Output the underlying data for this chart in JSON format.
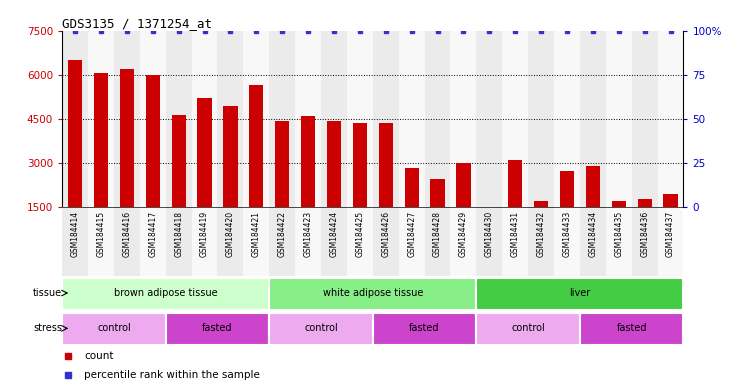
{
  "title": "GDS3135 / 1371254_at",
  "samples": [
    "GSM184414",
    "GSM184415",
    "GSM184416",
    "GSM184417",
    "GSM184418",
    "GSM184419",
    "GSM184420",
    "GSM184421",
    "GSM184422",
    "GSM184423",
    "GSM184424",
    "GSM184425",
    "GSM184426",
    "GSM184427",
    "GSM184428",
    "GSM184429",
    "GSM184430",
    "GSM184431",
    "GSM184432",
    "GSM184433",
    "GSM184434",
    "GSM184435",
    "GSM184436",
    "GSM184437"
  ],
  "counts": [
    6500,
    6050,
    6200,
    6000,
    4650,
    5200,
    4950,
    5650,
    4450,
    4600,
    4450,
    4350,
    4350,
    2850,
    2450,
    3000,
    1500,
    3100,
    1700,
    2750,
    2900,
    1700,
    1800,
    1950
  ],
  "percentile_ranks": [
    100,
    100,
    100,
    100,
    100,
    100,
    100,
    100,
    100,
    100,
    100,
    100,
    100,
    100,
    100,
    100,
    100,
    100,
    100,
    100,
    100,
    100,
    100,
    100
  ],
  "bar_color": "#cc0000",
  "dot_color": "#3333cc",
  "ylim_left": [
    1500,
    7500
  ],
  "yticks_left": [
    1500,
    3000,
    4500,
    6000,
    7500
  ],
  "ylim_right": [
    0,
    100
  ],
  "yticks_right": [
    0,
    25,
    50,
    75,
    100
  ],
  "tissue_groups": [
    {
      "label": "brown adipose tissue",
      "start": 0,
      "end": 8,
      "color": "#ccffcc"
    },
    {
      "label": "white adipose tissue",
      "start": 8,
      "end": 16,
      "color": "#88ee88"
    },
    {
      "label": "liver",
      "start": 16,
      "end": 24,
      "color": "#44cc44"
    }
  ],
  "stress_groups": [
    {
      "label": "control",
      "start": 0,
      "end": 4,
      "color": "#eeaaee"
    },
    {
      "label": "fasted",
      "start": 4,
      "end": 8,
      "color": "#cc44cc"
    },
    {
      "label": "control",
      "start": 8,
      "end": 12,
      "color": "#eeaaee"
    },
    {
      "label": "fasted",
      "start": 12,
      "end": 16,
      "color": "#cc44cc"
    },
    {
      "label": "control",
      "start": 16,
      "end": 20,
      "color": "#eeaaee"
    },
    {
      "label": "fasted",
      "start": 20,
      "end": 24,
      "color": "#cc44cc"
    }
  ],
  "legend_count_color": "#cc0000",
  "legend_dot_color": "#3333cc",
  "bg_color": "#ffffff",
  "xticklabel_fontsize": 5.5,
  "title_fontsize": 9,
  "col_bg_even": "#ebebeb",
  "col_bg_odd": "#f8f8f8"
}
